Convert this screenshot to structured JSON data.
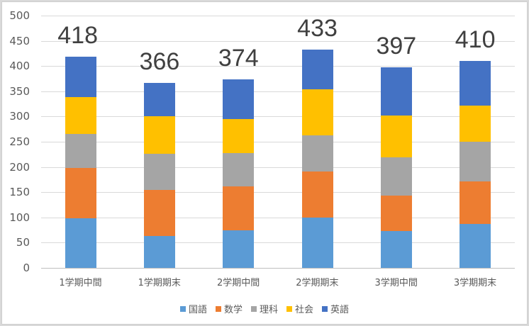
{
  "chart_data": {
    "type": "bar",
    "stacked": true,
    "title": "",
    "xlabel": "",
    "ylabel": "",
    "ylim": [
      0,
      500
    ],
    "yticks": [
      0,
      50,
      100,
      150,
      200,
      250,
      300,
      350,
      400,
      450,
      500
    ],
    "grid": true,
    "legend_position": "bottom",
    "categories": [
      "1学期中間",
      "1学期期末",
      "2学期中間",
      "2学期期末",
      "3学期中間",
      "3学期期末"
    ],
    "series": [
      {
        "name": "国語",
        "color": "#5b9bd5",
        "values": [
          98,
          63,
          74,
          100,
          73,
          87
        ]
      },
      {
        "name": "数学",
        "color": "#ed7d31",
        "values": [
          100,
          91,
          87,
          91,
          70,
          84
        ]
      },
      {
        "name": "理科",
        "color": "#a5a5a5",
        "values": [
          67,
          72,
          66,
          72,
          76,
          79
        ]
      },
      {
        "name": "社会",
        "color": "#ffc000",
        "values": [
          74,
          74,
          68,
          91,
          83,
          71
        ]
      },
      {
        "name": "英語",
        "color": "#4472c4",
        "values": [
          79,
          66,
          79,
          79,
          95,
          89
        ]
      }
    ],
    "totals": [
      418,
      366,
      374,
      433,
      397,
      410
    ]
  },
  "yaxis": {
    "labels": [
      "0",
      "50",
      "100",
      "150",
      "200",
      "250",
      "300",
      "350",
      "400",
      "450",
      "500"
    ]
  },
  "totals_labels": [
    "418",
    "366",
    "374",
    "433",
    "397",
    "410"
  ],
  "legend": [
    {
      "label": "国語",
      "color": "#5b9bd5"
    },
    {
      "label": "数学",
      "color": "#ed7d31"
    },
    {
      "label": "理科",
      "color": "#a5a5a5"
    },
    {
      "label": "社会",
      "color": "#ffc000"
    },
    {
      "label": "英語",
      "color": "#4472c4"
    }
  ]
}
